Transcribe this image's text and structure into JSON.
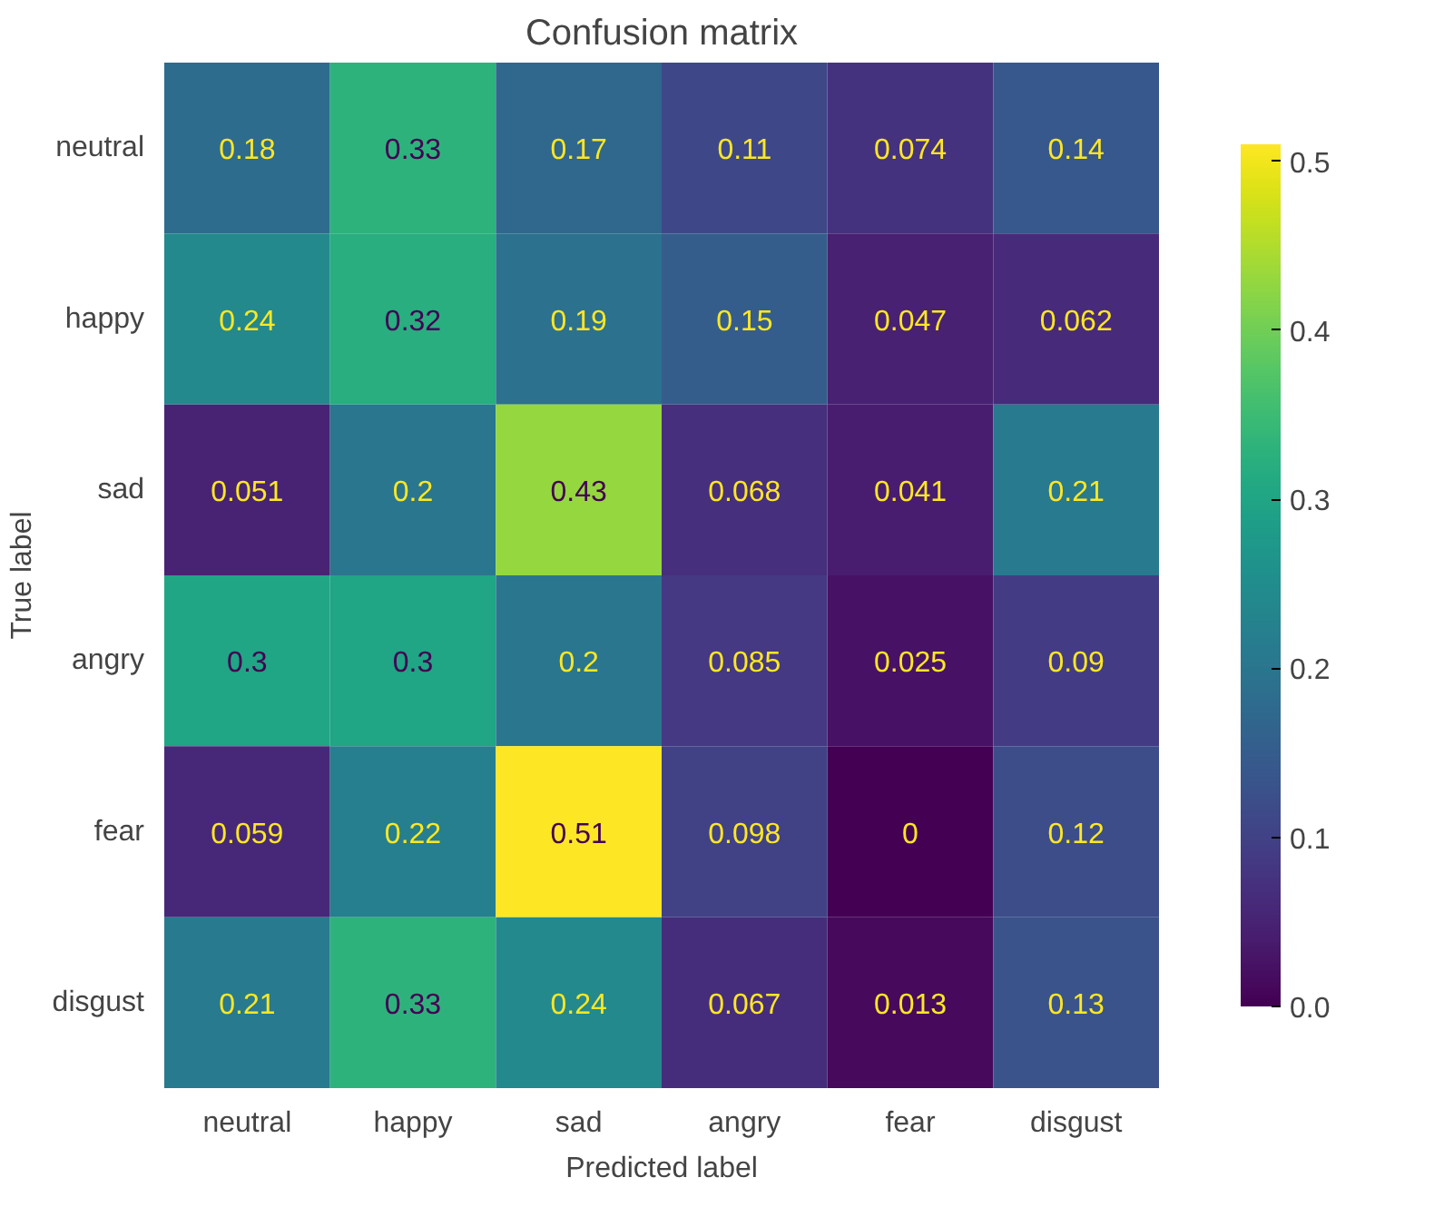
{
  "chart_data": {
    "type": "heatmap",
    "title": "Confusion matrix",
    "xlabel": "Predicted label",
    "ylabel": "True label",
    "categories": [
      "neutral",
      "happy",
      "sad",
      "angry",
      "fear",
      "disgust"
    ],
    "y_categories": [
      "neutral",
      "happy",
      "sad",
      "angry",
      "fear",
      "disgust"
    ],
    "cells": [
      [
        0.18,
        0.33,
        0.17,
        0.11,
        0.074,
        0.14
      ],
      [
        0.24,
        0.32,
        0.19,
        0.15,
        0.047,
        0.062
      ],
      [
        0.051,
        0.2,
        0.43,
        0.068,
        0.041,
        0.21
      ],
      [
        0.3,
        0.3,
        0.2,
        0.085,
        0.025,
        0.09
      ],
      [
        0.059,
        0.22,
        0.51,
        0.098,
        0,
        0.12
      ],
      [
        0.21,
        0.33,
        0.24,
        0.067,
        0.013,
        0.13
      ]
    ],
    "data_labels": true,
    "clim": [
      0,
      0.51
    ],
    "cticks": [
      {
        "value": 0,
        "label": "0.0"
      },
      {
        "value": 0.1,
        "label": "0.1"
      },
      {
        "value": 0.2,
        "label": "0.2"
      },
      {
        "value": 0.3,
        "label": "0.3"
      },
      {
        "value": 0.4,
        "label": "0.4"
      },
      {
        "value": 0.5,
        "label": "0.5"
      }
    ]
  }
}
